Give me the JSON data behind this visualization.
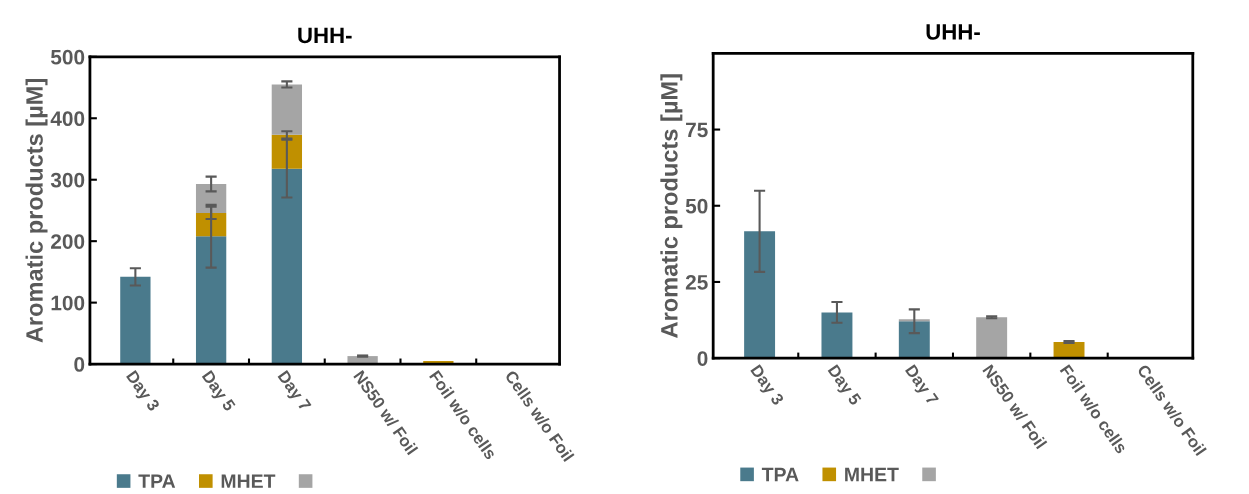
{
  "chart_data": [
    {
      "type": "bar",
      "title": "UHH-",
      "ylabel": "Aromatic products [µM]",
      "stacked": true,
      "legend": "bottom",
      "grid": false,
      "categories": [
        "Day 3",
        "Day 5",
        "Day 7",
        "NS50 w/ Foil",
        "Foil w/o cells",
        "Cells w/o Foil"
      ],
      "ylim": [
        0,
        500
      ],
      "yticks": [
        0,
        100,
        200,
        300,
        400,
        500
      ],
      "series": [
        {
          "name": "TPA",
          "color": "#4a7a8c",
          "values": [
            142,
            208,
            318,
            0,
            0,
            0
          ],
          "errors": [
            14,
            51,
            47,
            null,
            null,
            null
          ]
        },
        {
          "name": "MHET",
          "color": "#c09000",
          "values": [
            0,
            38,
            55,
            0,
            5,
            0
          ],
          "errors": [
            null,
            10,
            6,
            null,
            null,
            null
          ]
        },
        {
          "name": null,
          "color": "#a5a5a5",
          "values": [
            0,
            47,
            82,
            13,
            0,
            0
          ],
          "errors": [
            null,
            12,
            5,
            1,
            null,
            null
          ]
        }
      ]
    },
    {
      "type": "bar",
      "title": "UHH-",
      "ylabel": "Aromatic products [µM]",
      "stacked": true,
      "legend": "bottom",
      "grid": false,
      "categories": [
        "Day 3",
        "Day 5",
        "Day 7",
        "NS50 w/ Foil",
        "Foil w/o cells",
        "Cells w/o Foil"
      ],
      "ylim": [
        0,
        100
      ],
      "yticks": [
        0,
        25,
        50,
        75
      ],
      "series": [
        {
          "name": "TPA",
          "color": "#4a7a8c",
          "values": [
            41.6,
            15.0,
            12.1,
            0,
            0,
            0
          ],
          "errors": [
            13.3,
            3.4,
            3.9,
            null,
            null,
            null
          ]
        },
        {
          "name": "MHET",
          "color": "#c09000",
          "values": [
            0,
            0,
            0,
            0,
            5.3,
            0
          ],
          "errors": [
            null,
            null,
            null,
            null,
            0.3,
            null
          ]
        },
        {
          "name": null,
          "color": "#a5a5a5",
          "values": [
            0,
            0,
            0.7,
            13.4,
            0,
            0
          ],
          "errors": [
            null,
            null,
            null,
            0.3,
            null,
            null
          ]
        }
      ]
    }
  ]
}
